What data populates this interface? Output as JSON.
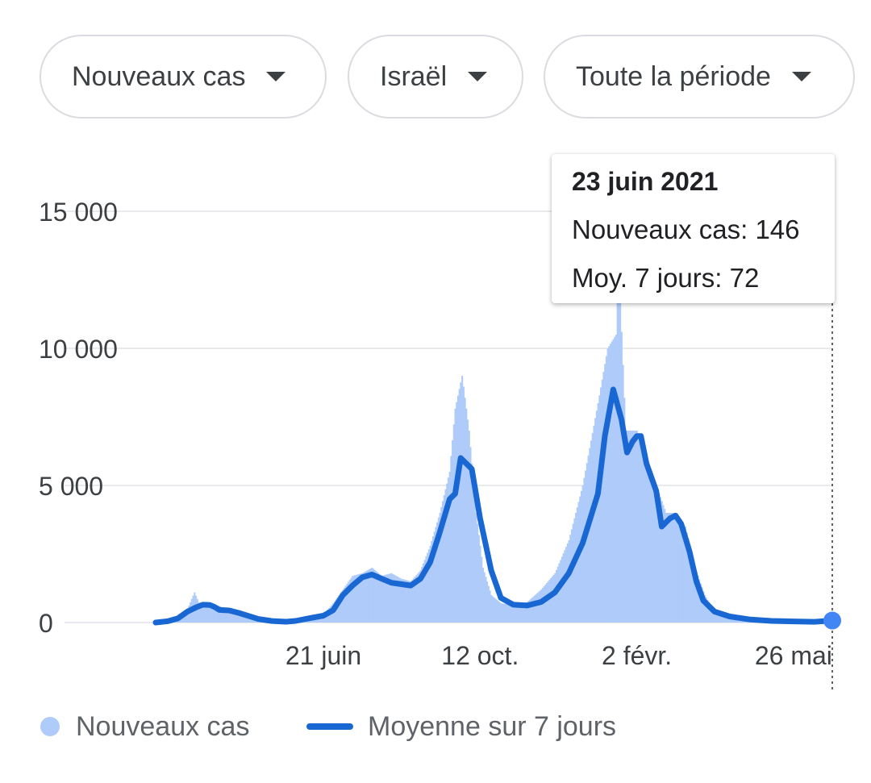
{
  "filters": {
    "metric": "Nouveaux cas",
    "country": "Israël",
    "period": "Toute la période"
  },
  "tooltip": {
    "date": "23 juin 2021",
    "cases_label": "Nouveaux cas: 146",
    "avg_label": "Moy. 7 jours: 72"
  },
  "legend": {
    "cases": "Nouveaux cas",
    "average": "Moyenne sur 7 jours"
  },
  "colors": {
    "bars": "#aecbfa",
    "line": "#1967d2",
    "highlight": "#4285f4",
    "grid": "#e8eaed"
  },
  "chart_data": {
    "type": "bar",
    "title": "",
    "xlabel": "",
    "ylabel": "",
    "ylim": [
      0,
      15000
    ],
    "y_ticks": [
      {
        "value": 0,
        "label": "0"
      },
      {
        "value": 5000,
        "label": "5 000"
      },
      {
        "value": 10000,
        "label": "10 000"
      },
      {
        "value": 15000,
        "label": "15 000"
      }
    ],
    "x_range": [
      "2020-02-21",
      "2021-06-23"
    ],
    "x_ticks": [
      {
        "date": "2020-06-21",
        "label": "21 juin"
      },
      {
        "date": "2020-10-12",
        "label": "12 oct."
      },
      {
        "date": "2021-02-02",
        "label": "2 févr."
      },
      {
        "date": "2021-05-26",
        "label": "26 mai"
      }
    ],
    "grid": true,
    "legend_position": "bottom-left",
    "series": [
      {
        "name": "Nouveaux cas",
        "kind": "bars",
        "points": [
          [
            "2020-02-21",
            0
          ],
          [
            "2020-03-01",
            50
          ],
          [
            "2020-03-08",
            150
          ],
          [
            "2020-03-15",
            500
          ],
          [
            "2020-03-20",
            1100
          ],
          [
            "2020-03-24",
            600
          ],
          [
            "2020-03-29",
            750
          ],
          [
            "2020-04-02",
            700
          ],
          [
            "2020-04-07",
            600
          ],
          [
            "2020-04-14",
            450
          ],
          [
            "2020-04-21",
            350
          ],
          [
            "2020-04-28",
            250
          ],
          [
            "2020-05-05",
            120
          ],
          [
            "2020-05-15",
            40
          ],
          [
            "2020-05-25",
            30
          ],
          [
            "2020-06-01",
            80
          ],
          [
            "2020-06-10",
            200
          ],
          [
            "2020-06-21",
            300
          ],
          [
            "2020-06-28",
            700
          ],
          [
            "2020-07-05",
            1200
          ],
          [
            "2020-07-12",
            1700
          ],
          [
            "2020-07-19",
            1800
          ],
          [
            "2020-07-26",
            2000
          ],
          [
            "2020-08-02",
            1700
          ],
          [
            "2020-08-09",
            1800
          ],
          [
            "2020-08-16",
            1600
          ],
          [
            "2020-08-23",
            1500
          ],
          [
            "2020-08-30",
            1900
          ],
          [
            "2020-09-06",
            2800
          ],
          [
            "2020-09-13",
            4000
          ],
          [
            "2020-09-20",
            5500
          ],
          [
            "2020-09-24",
            7800
          ],
          [
            "2020-09-29",
            9000
          ],
          [
            "2020-10-04",
            7000
          ],
          [
            "2020-10-09",
            4000
          ],
          [
            "2020-10-14",
            2000
          ],
          [
            "2020-10-20",
            1000
          ],
          [
            "2020-10-27",
            700
          ],
          [
            "2020-11-05",
            650
          ],
          [
            "2020-11-15",
            750
          ],
          [
            "2020-11-25",
            1200
          ],
          [
            "2020-12-05",
            1800
          ],
          [
            "2020-12-15",
            3000
          ],
          [
            "2020-12-25",
            5000
          ],
          [
            "2021-01-05",
            8000
          ],
          [
            "2021-01-12",
            10000
          ],
          [
            "2021-01-18",
            10500
          ],
          [
            "2021-01-20",
            13000
          ],
          [
            "2021-01-25",
            7000
          ],
          [
            "2021-02-02",
            7000
          ],
          [
            "2021-02-09",
            6000
          ],
          [
            "2021-02-16",
            5000
          ],
          [
            "2021-02-23",
            4000
          ],
          [
            "2021-03-02",
            4000
          ],
          [
            "2021-03-09",
            3500
          ],
          [
            "2021-03-16",
            2000
          ],
          [
            "2021-03-23",
            1000
          ],
          [
            "2021-03-30",
            400
          ],
          [
            "2021-04-06",
            250
          ],
          [
            "2021-04-15",
            150
          ],
          [
            "2021-04-25",
            100
          ],
          [
            "2021-05-05",
            60
          ],
          [
            "2021-05-15",
            40
          ],
          [
            "2021-05-26",
            30
          ],
          [
            "2021-06-05",
            20
          ],
          [
            "2021-06-15",
            50
          ],
          [
            "2021-06-23",
            146
          ]
        ]
      },
      {
        "name": "Moyenne sur 7 jours",
        "kind": "line",
        "points": [
          [
            "2020-02-21",
            0
          ],
          [
            "2020-03-01",
            50
          ],
          [
            "2020-03-08",
            150
          ],
          [
            "2020-03-15",
            400
          ],
          [
            "2020-03-21",
            550
          ],
          [
            "2020-03-26",
            650
          ],
          [
            "2020-03-31",
            640
          ],
          [
            "2020-04-03",
            580
          ],
          [
            "2020-04-07",
            460
          ],
          [
            "2020-04-14",
            440
          ],
          [
            "2020-04-21",
            350
          ],
          [
            "2020-04-28",
            240
          ],
          [
            "2020-05-05",
            130
          ],
          [
            "2020-05-15",
            55
          ],
          [
            "2020-05-25",
            30
          ],
          [
            "2020-06-01",
            60
          ],
          [
            "2020-06-10",
            150
          ],
          [
            "2020-06-21",
            250
          ],
          [
            "2020-06-28",
            450
          ],
          [
            "2020-07-05",
            1000
          ],
          [
            "2020-07-12",
            1350
          ],
          [
            "2020-07-19",
            1650
          ],
          [
            "2020-07-26",
            1750
          ],
          [
            "2020-08-02",
            1600
          ],
          [
            "2020-08-09",
            1450
          ],
          [
            "2020-08-16",
            1400
          ],
          [
            "2020-08-23",
            1350
          ],
          [
            "2020-08-30",
            1600
          ],
          [
            "2020-09-06",
            2200
          ],
          [
            "2020-09-13",
            3300
          ],
          [
            "2020-09-20",
            4500
          ],
          [
            "2020-09-24",
            4700
          ],
          [
            "2020-09-28",
            6000
          ],
          [
            "2020-10-02",
            5800
          ],
          [
            "2020-10-06",
            5600
          ],
          [
            "2020-10-12",
            3800
          ],
          [
            "2020-10-20",
            1900
          ],
          [
            "2020-10-27",
            900
          ],
          [
            "2020-11-05",
            650
          ],
          [
            "2020-11-15",
            620
          ],
          [
            "2020-11-25",
            750
          ],
          [
            "2020-12-05",
            1100
          ],
          [
            "2020-12-15",
            1800
          ],
          [
            "2020-12-25",
            2900
          ],
          [
            "2021-01-05",
            4700
          ],
          [
            "2021-01-10",
            6800
          ],
          [
            "2021-01-16",
            8500
          ],
          [
            "2021-01-22",
            7400
          ],
          [
            "2021-01-26",
            6200
          ],
          [
            "2021-01-30",
            6600
          ],
          [
            "2021-02-02",
            6800
          ],
          [
            "2021-02-05",
            6800
          ],
          [
            "2021-02-09",
            5800
          ],
          [
            "2021-02-16",
            4800
          ],
          [
            "2021-02-20",
            3500
          ],
          [
            "2021-02-26",
            3800
          ],
          [
            "2021-03-02",
            3900
          ],
          [
            "2021-03-06",
            3600
          ],
          [
            "2021-03-12",
            2600
          ],
          [
            "2021-03-17",
            1500
          ],
          [
            "2021-03-22",
            800
          ],
          [
            "2021-03-30",
            400
          ],
          [
            "2021-04-10",
            220
          ],
          [
            "2021-04-25",
            110
          ],
          [
            "2021-05-10",
            60
          ],
          [
            "2021-05-26",
            40
          ],
          [
            "2021-06-10",
            25
          ],
          [
            "2021-06-23",
            72
          ]
        ]
      }
    ],
    "highlight": {
      "date": "2021-06-23",
      "value": 72
    }
  }
}
